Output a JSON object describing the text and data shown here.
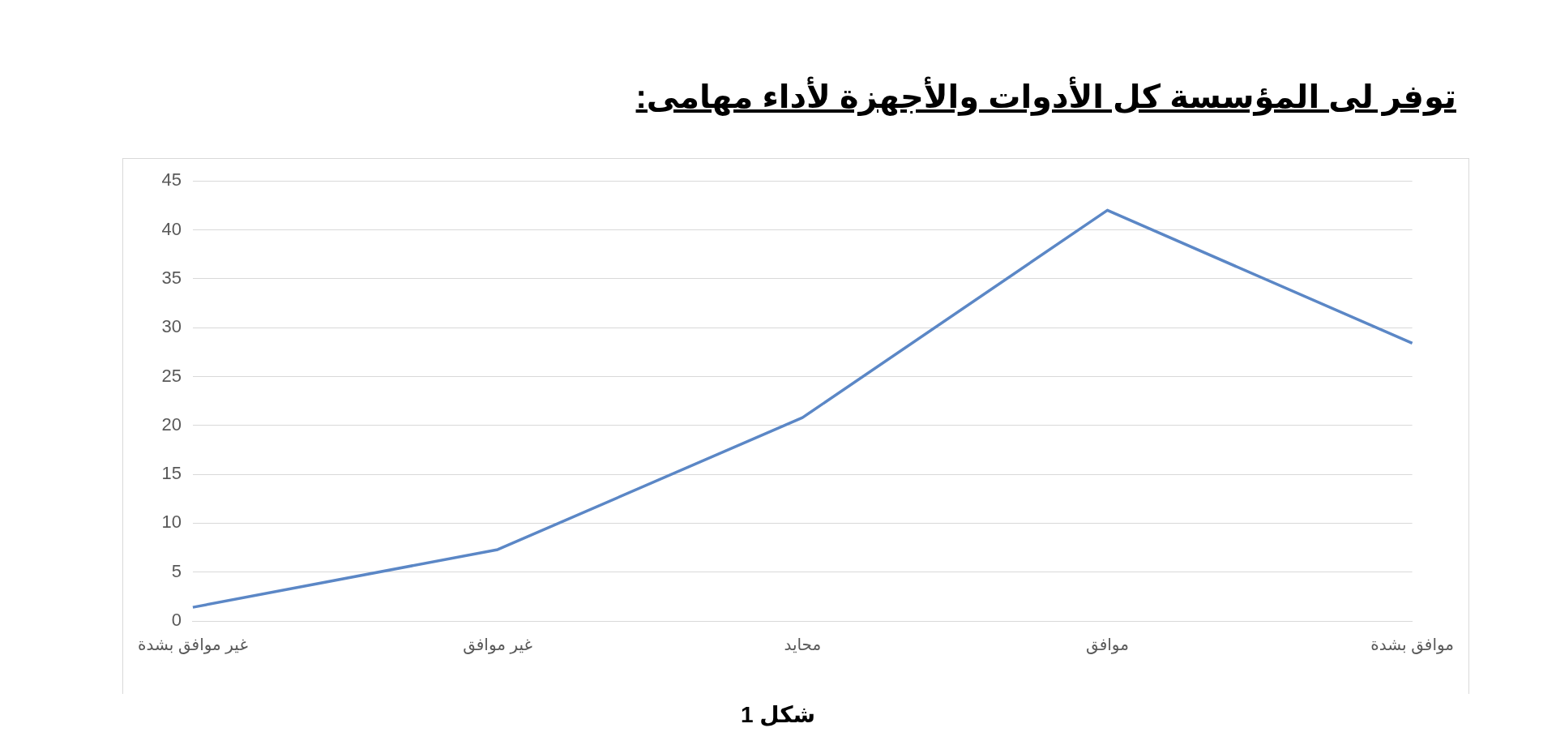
{
  "chart_data": {
    "type": "line",
    "title": "توفر لى المؤسسة كل الأدوات والأجهزة لأداء مهامى:",
    "categories": [
      "غير موافق بشدة",
      "غير موافق",
      "محايد",
      "موافق",
      "موافق بشدة"
    ],
    "series": [
      {
        "color": "#5b87c6",
        "values": [
          1.4,
          7.3,
          20.8,
          42.0,
          28.4
        ]
      }
    ],
    "ylim": [
      0,
      45
    ],
    "yticks": [
      0,
      5,
      10,
      15,
      20,
      25,
      30,
      35,
      40,
      45
    ],
    "grid": "y",
    "legend": false,
    "marker": "none",
    "line_style": "solid",
    "annotations": [
      "شكل 1"
    ]
  }
}
